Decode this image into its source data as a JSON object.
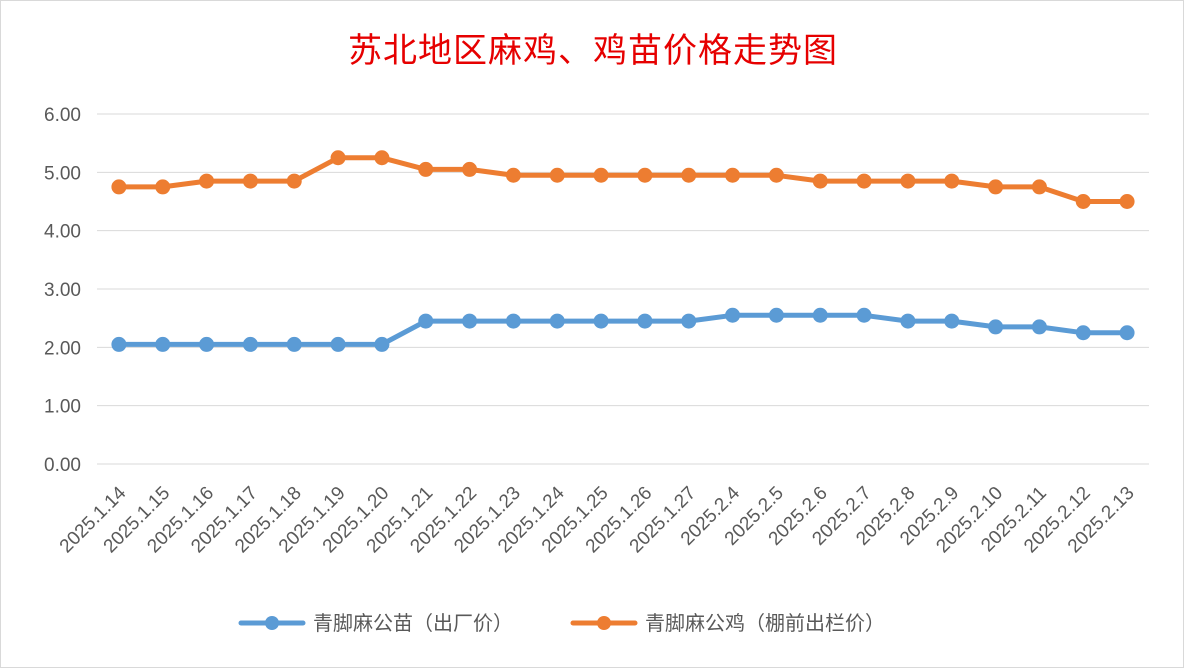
{
  "chart_data": {
    "type": "line",
    "title": "苏北地区麻鸡、鸡苗价格走势图",
    "categories": [
      "2025.1.14",
      "2025.1.15",
      "2025.1.16",
      "2025.1.17",
      "2025.1.18",
      "2025.1.19",
      "2025.1.20",
      "2025.1.21",
      "2025.1.22",
      "2025.1.23",
      "2025.1.24",
      "2025.1.25",
      "2025.1.26",
      "2025.1.27",
      "2025.2.4",
      "2025.2.5",
      "2025.2.6",
      "2025.2.7",
      "2025.2.8",
      "2025.2.9",
      "2025.2.10",
      "2025.2.11",
      "2025.2.12",
      "2025.2.13"
    ],
    "yticks": [
      "0.00",
      "1.00",
      "2.00",
      "3.00",
      "4.00",
      "5.00",
      "6.00"
    ],
    "ylim": [
      0,
      6
    ],
    "grid": true,
    "legend_position": "bottom",
    "series": [
      {
        "name": "青脚麻公苗（出厂价）",
        "color": "#5b9bd5",
        "values": [
          2.05,
          2.05,
          2.05,
          2.05,
          2.05,
          2.05,
          2.05,
          2.45,
          2.45,
          2.45,
          2.45,
          2.45,
          2.45,
          2.45,
          2.55,
          2.55,
          2.55,
          2.55,
          2.45,
          2.45,
          2.35,
          2.35,
          2.25,
          2.25
        ]
      },
      {
        "name": "青脚麻公鸡（棚前出栏价）",
        "color": "#ed7d31",
        "values": [
          4.75,
          4.75,
          4.85,
          4.85,
          4.85,
          5.25,
          5.25,
          5.05,
          5.05,
          4.95,
          4.95,
          4.95,
          4.95,
          4.95,
          4.95,
          4.95,
          4.85,
          4.85,
          4.85,
          4.85,
          4.75,
          4.75,
          4.5,
          4.5
        ]
      }
    ]
  }
}
